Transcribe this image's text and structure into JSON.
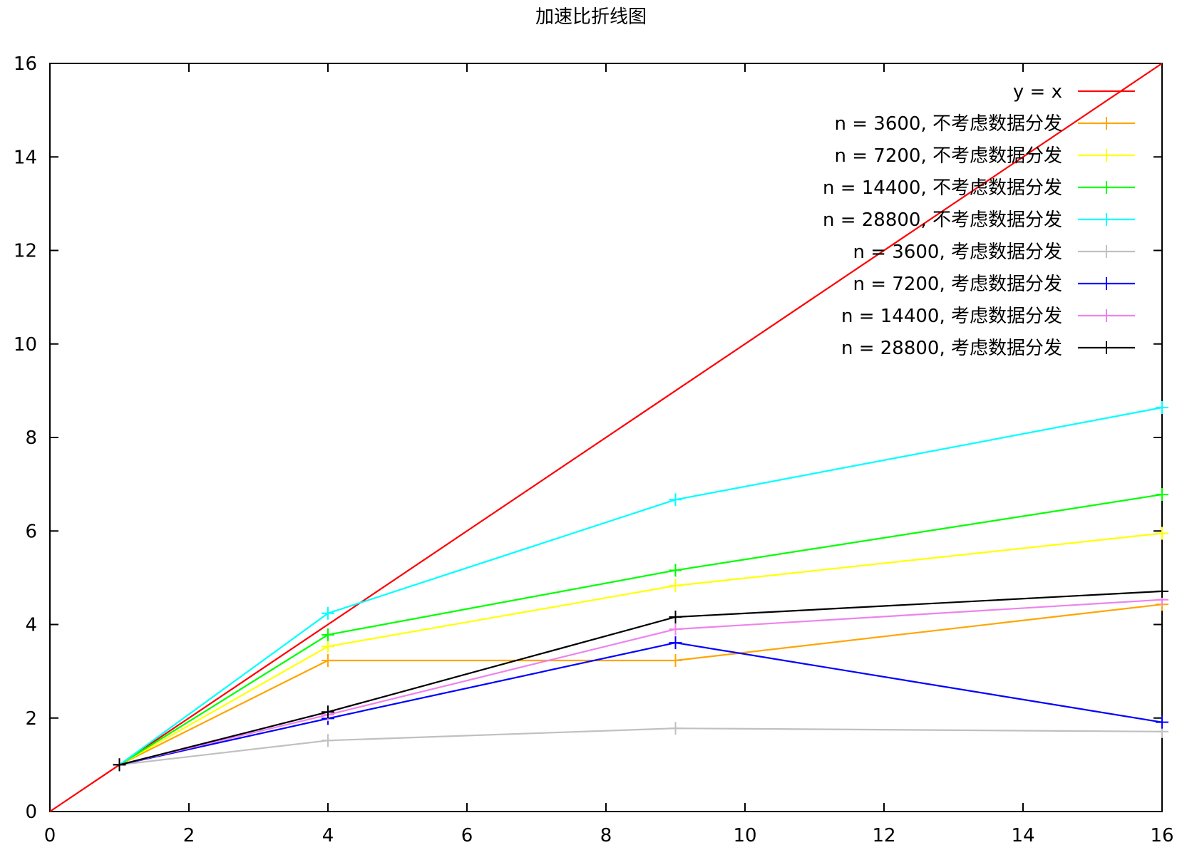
{
  "chart_data": {
    "type": "line",
    "title": "加速比折线图",
    "xlabel": "",
    "ylabel": "",
    "xlim": [
      0,
      16
    ],
    "ylim": [
      0,
      16
    ],
    "x_ticks": [
      "0",
      "2",
      "4",
      "6",
      "8",
      "10",
      "12",
      "14",
      "16"
    ],
    "y_ticks": [
      "0",
      "2",
      "4",
      "6",
      "8",
      "10",
      "12",
      "14",
      "16"
    ],
    "grid": false,
    "legend_position": "top-right",
    "x": [
      1,
      4,
      9,
      16
    ],
    "series": [
      {
        "name": "y = x",
        "color": "#ff0000",
        "marker": false,
        "x": [
          0,
          16
        ],
        "values": [
          0,
          16
        ]
      },
      {
        "name": "n = 3600, 不考虑数据分发",
        "color": "#ffa500",
        "marker": true,
        "values": [
          1.0,
          3.23,
          3.23,
          4.43
        ]
      },
      {
        "name": "n = 7200, 不考虑数据分发",
        "color": "#ffff00",
        "marker": true,
        "values": [
          1.0,
          3.53,
          4.83,
          5.95
        ]
      },
      {
        "name": "n = 14400, 不考虑数据分发",
        "color": "#00ff00",
        "marker": true,
        "values": [
          1.0,
          3.78,
          5.16,
          6.78
        ]
      },
      {
        "name": "n = 28800, 不考虑数据分发",
        "color": "#00ffff",
        "marker": true,
        "values": [
          1.0,
          4.24,
          6.67,
          8.64
        ]
      },
      {
        "name": "n = 3600, 考虑数据分发",
        "color": "#c0c0c0",
        "marker": true,
        "values": [
          1.0,
          1.52,
          1.78,
          1.71
        ]
      },
      {
        "name": "n = 7200, 考虑数据分发",
        "color": "#0000ff",
        "marker": true,
        "values": [
          1.0,
          1.99,
          3.61,
          1.91
        ]
      },
      {
        "name": "n = 14400, 考虑数据分发",
        "color": "#ee82ee",
        "marker": true,
        "values": [
          1.0,
          2.07,
          3.9,
          4.53
        ]
      },
      {
        "name": "n = 28800, 考虑数据分发",
        "color": "#000000",
        "marker": true,
        "values": [
          1.0,
          2.13,
          4.16,
          4.71
        ]
      }
    ]
  }
}
